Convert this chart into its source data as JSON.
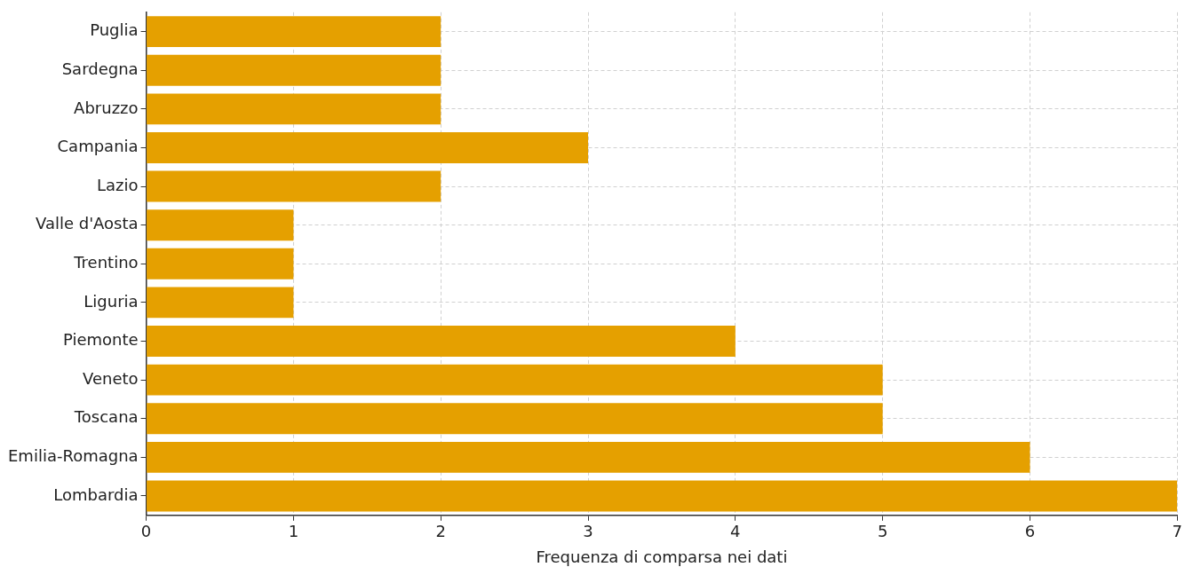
{
  "chart_data": {
    "type": "bar",
    "orientation": "horizontal",
    "xlabel": "Frequenza di comparsa nei dati",
    "categories": [
      "Puglia",
      "Sardegna",
      "Abruzzo",
      "Campania",
      "Lazio",
      "Valle d'Aosta",
      "Trentino",
      "Liguria",
      "Piemonte",
      "Veneto",
      "Toscana",
      "Emilia-Romagna",
      "Lombardia"
    ],
    "values": [
      2,
      2,
      2,
      3,
      2,
      1,
      1,
      1,
      4,
      5,
      5,
      6,
      7
    ],
    "color": "#e5a000",
    "xlim": [
      0,
      7
    ],
    "xticks": [
      0,
      1,
      2,
      3,
      4,
      5,
      6,
      7
    ],
    "grid": true
  }
}
